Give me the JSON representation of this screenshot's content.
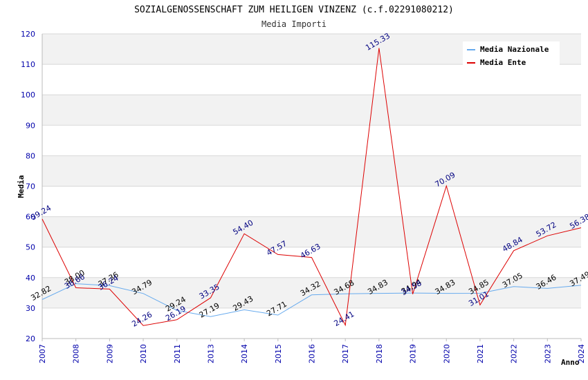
{
  "chart_data": {
    "type": "line",
    "title": "SOZIALGENOSSENSCHAFT ZUM HEILIGEN VINZENZ (c.f.02291080212)",
    "subtitle": "Media Importi",
    "xlabel": "Anno",
    "ylabel": "Media",
    "ylim": [
      20,
      120
    ],
    "yticks": [
      20,
      30,
      40,
      50,
      60,
      70,
      80,
      90,
      100,
      110,
      120
    ],
    "grid": true,
    "legend_position": "top-right",
    "categories": [
      "2007",
      "2008",
      "2009",
      "2010",
      "2011",
      "2013",
      "2014",
      "2015",
      "2016",
      "2017",
      "2018",
      "2019",
      "2020",
      "2021",
      "2022",
      "2023",
      "2024"
    ],
    "series": [
      {
        "name": "Media Nazionale",
        "color": "#66aaee",
        "values": [
          32.82,
          38.0,
          37.36,
          34.79,
          29.24,
          27.19,
          29.43,
          27.71,
          34.32,
          34.68,
          34.83,
          34.94,
          34.83,
          34.85,
          37.05,
          36.46,
          37.49
        ],
        "labels": [
          "32.82",
          "38.00",
          "37.36",
          "34.79",
          "29.24",
          "27.19",
          "29.43",
          "27.71",
          "34.32",
          "34.68",
          "34.83",
          "34.94",
          "34.83",
          "34.85",
          "37.05",
          "36.46",
          "37.49"
        ]
      },
      {
        "name": "Media Ente",
        "color": "#dd0000",
        "values": [
          59.24,
          36.66,
          36.24,
          24.26,
          26.19,
          33.35,
          54.4,
          47.57,
          46.63,
          24.41,
          115.33,
          34.58,
          70.09,
          31.01,
          48.84,
          53.72,
          56.38
        ],
        "labels": [
          "59.24",
          "36.66",
          "36.24",
          "24.26",
          "26.19",
          "33.35",
          "54.40",
          "47.57",
          "46.63",
          "24.41",
          "115.33",
          "34.58",
          "70.09",
          "31.01",
          "48.84",
          "53.72",
          "56.38"
        ]
      }
    ]
  }
}
